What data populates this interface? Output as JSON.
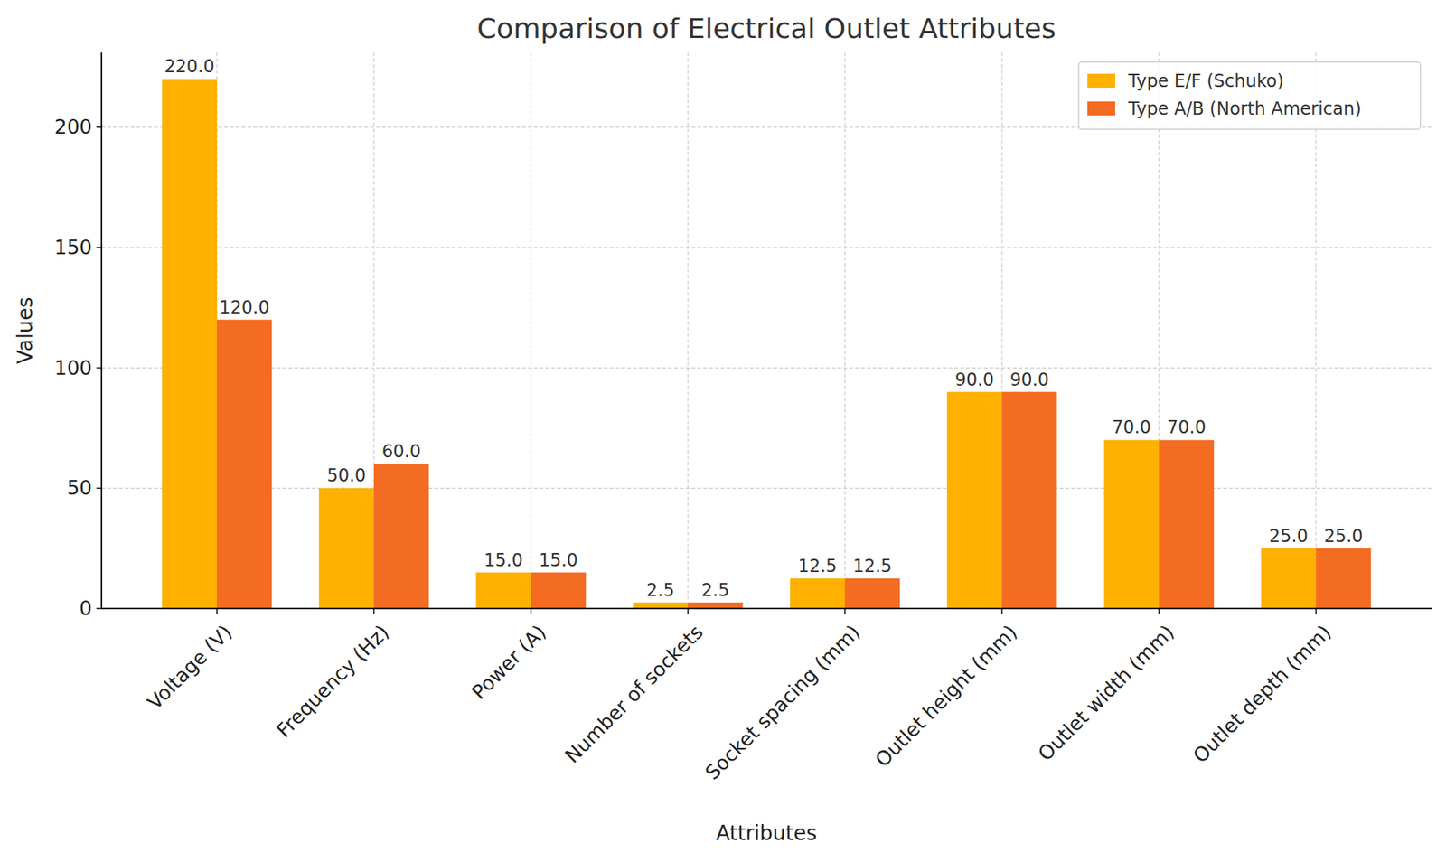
{
  "chart_data": {
    "type": "bar",
    "title": "Comparison of Electrical Outlet Attributes",
    "x_label": "Attributes",
    "y_label": "Values",
    "categories": [
      "Voltage (V)",
      "Frequency (Hz)",
      "Power (A)",
      "Number of sockets",
      "Socket spacing (mm)",
      "Outlet height (mm)",
      "Outlet width (mm)",
      "Outlet depth (mm)"
    ],
    "series": [
      {
        "name": "Type E/F (Schuko)",
        "color": "#ffb000",
        "values": [
          220,
          50,
          15,
          2.5,
          12.5,
          90,
          70,
          25
        ],
        "value_labels": [
          "220.0",
          "50.0",
          "15.0",
          "2.5",
          "12.5",
          "90.0",
          "70.0",
          "25.0"
        ]
      },
      {
        "name": "Type A/B (North American)",
        "color": "#f46b22",
        "values": [
          120,
          60,
          15,
          2.5,
          12.5,
          90,
          70,
          25
        ],
        "value_labels": [
          "120.0",
          "60.0",
          "15.0",
          "2.5",
          "12.5",
          "90.0",
          "70.0",
          "25.0"
        ]
      }
    ],
    "ylim": [
      0,
      231
    ],
    "yticks": [
      0,
      50,
      100,
      150,
      200
    ],
    "grid": true,
    "legend": "upper right",
    "data_labels": true
  }
}
